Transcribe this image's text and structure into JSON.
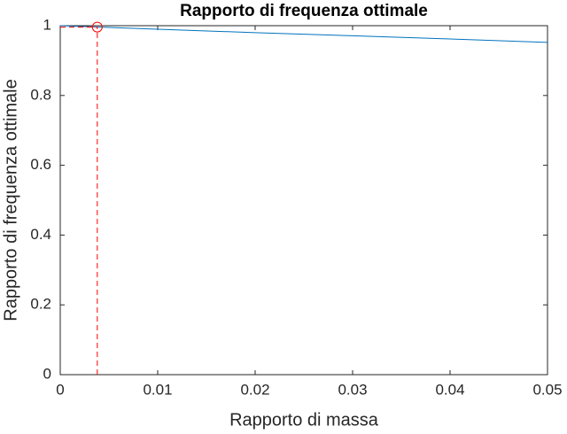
{
  "chart_data": {
    "type": "line",
    "title": "Rapporto di frequenza ottimale",
    "x_label": "Rapporto di massa",
    "y_label": "Rapporto di frequenza ottimale",
    "x": [
      0,
      0.01,
      0.02,
      0.03,
      0.04,
      0.05
    ],
    "series": [
      {
        "color": "#0072bd",
        "values": [
          1,
          0.99,
          0.98,
          0.971,
          0.962,
          0.952
        ]
      }
    ],
    "marker": {
      "x": 0.0038,
      "y": 0.996,
      "color": "#ff0000"
    },
    "xlim": [
      0,
      0.05
    ],
    "xticks": [
      0,
      0.01,
      0.02,
      0.03,
      0.04,
      0.05
    ],
    "ylim": [
      0,
      1
    ],
    "yticks": [
      0,
      0.2,
      0.4,
      0.6,
      0.8,
      1
    ]
  }
}
